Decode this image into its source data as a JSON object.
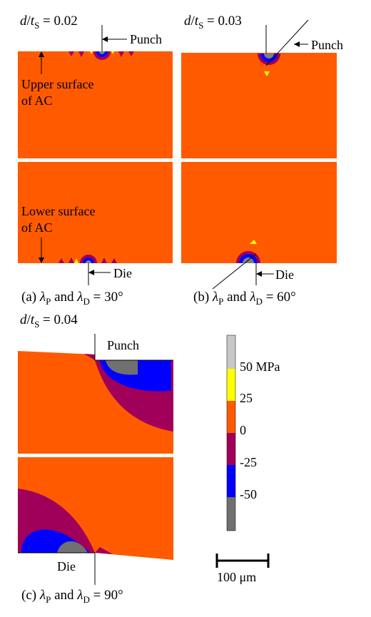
{
  "panels": {
    "a": {
      "ratio_value": "= 0.02",
      "caption_text": " and ",
      "caption_angle": " = 30°",
      "punch": "Punch",
      "die": "Die",
      "upper_surface": [
        "Upper surface",
        "of AC"
      ],
      "lower_surface": [
        "Lower surface",
        "of AC"
      ]
    },
    "b": {
      "ratio_value": "= 0.03",
      "caption_text": " and ",
      "caption_angle": " = 60°",
      "punch": "Punch",
      "die": "Die"
    },
    "c": {
      "ratio_value": "= 0.04",
      "caption_text": " and ",
      "caption_angle": " = 90°",
      "punch": "Punch",
      "die": "Die"
    }
  },
  "captions": {
    "a": "(a) ",
    "b": "(b) ",
    "c": "(c) "
  },
  "symbols": {
    "ratio_d": "d",
    "ratio_t": "t",
    "ratio_sub": "S",
    "lambda": "λ",
    "sub_p": "P",
    "sub_d": "D"
  },
  "colorbar": {
    "labels": [
      "50 MPa",
      "25",
      "0",
      "-25",
      "-50"
    ],
    "colors": [
      "#c8c8c8",
      "#ffff00",
      "#ff5a00",
      "#a0005a",
      "#0000ff",
      "#707070"
    ]
  },
  "scale_bar": {
    "label": "100 μm"
  },
  "stress_colors": {
    "neutral": "#ff5a00",
    "light_compress": "#a0005a",
    "compress": "#0000ff",
    "strong_compress": "#808080",
    "tension": "#ffff00"
  }
}
